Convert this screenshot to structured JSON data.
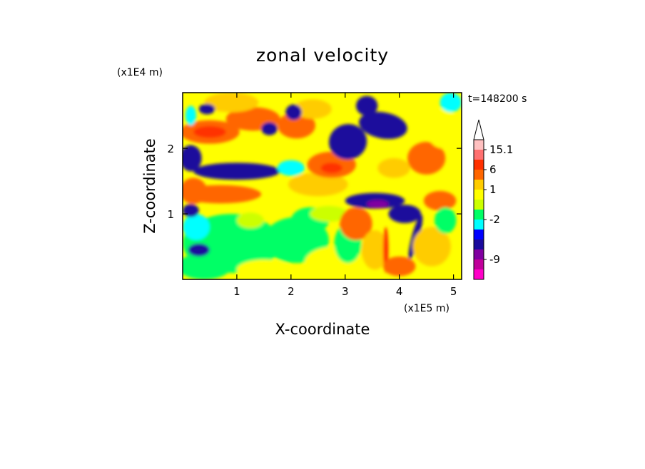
{
  "chart_data": {
    "type": "heatmap",
    "title": "zonal velocity",
    "xlabel": "X-coordinate",
    "ylabel": "Z-coordinate",
    "x_unit": "(x1E5 m)",
    "y_unit": "(x1E4 m)",
    "time_label": "t=148200 s",
    "xlim": [
      0,
      5.15
    ],
    "ylim": [
      0,
      2.85
    ],
    "x_ticks": [
      1,
      2,
      3,
      4,
      5
    ],
    "y_ticks": [
      1,
      2
    ],
    "x_tick_labels": [
      "1",
      "2",
      "3",
      "4",
      "5"
    ],
    "y_tick_labels": [
      "1",
      "2"
    ],
    "colorbar": {
      "colors": [
        "#ff00c8",
        "#c0009a",
        "#8000a0",
        "#1a0a9c",
        "#0000ff",
        "#00ffff",
        "#00ff66",
        "#ccff00",
        "#ffff00",
        "#ffcc00",
        "#ff6600",
        "#ff3000",
        "#ff7070",
        "#ffc0c0"
      ],
      "tick_labels": [
        "15.1",
        "6",
        "1",
        "-2",
        "-9"
      ],
      "tick_values": [
        15.1,
        6,
        1,
        -2,
        -9
      ],
      "tick_level_index": [
        13,
        11,
        9,
        6,
        2
      ],
      "extend_top": true
    },
    "regions": [
      {
        "label": "blue band 2.2-2.8",
        "level": 3,
        "x0": 3.1,
        "x1": 4.3,
        "z0": 2.15,
        "z1": 2.65
      },
      {
        "label": "blue band mid",
        "level": 3,
        "x0": 0.3,
        "x1": 1.7,
        "z0": 1.55,
        "z1": 1.85
      },
      {
        "label": "blue band lower",
        "level": 3,
        "x0": 2.95,
        "x1": 4.1,
        "z0": 1.0,
        "z1": 1.3
      },
      {
        "label": "red band upper",
        "level": 11,
        "x0": 0.0,
        "x1": 1.5,
        "z0": 2.1,
        "z1": 2.35
      },
      {
        "label": "red core",
        "level": 11,
        "x0": 2.65,
        "x1": 3.0,
        "z0": 1.6,
        "z1": 1.75
      }
    ]
  }
}
